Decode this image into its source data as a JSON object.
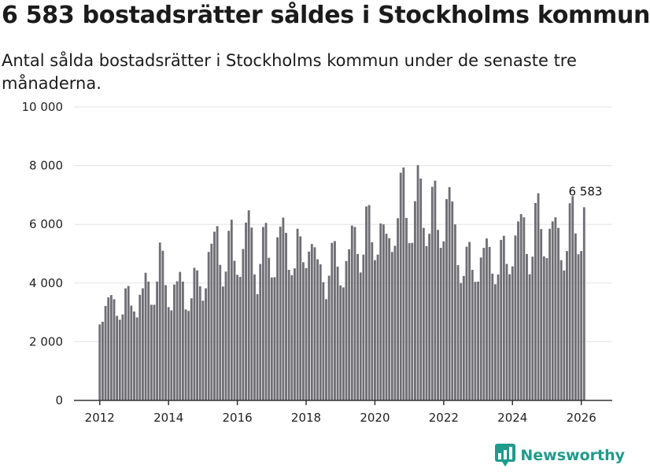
{
  "title": "6 583 bostadsrätter såldes i Stockholms kommun",
  "subtitle": "Antal sålda bostadsrätter i Stockholms kommun under de senaste tre månaderna.",
  "brand": {
    "name": "Newsworthy",
    "icon": "newsworthy-logo-icon",
    "color": "#1e9b8c"
  },
  "colors": {
    "bar": "#6e6e74",
    "highlight": "#12948a",
    "grid": "#e3e3e3",
    "axis": "#333333"
  },
  "chart_data": {
    "type": "bar",
    "title": "6 583 bostadsrätter såldes i Stockholms kommun",
    "xlabel": "",
    "ylabel": "",
    "ylim": [
      0,
      10000
    ],
    "y_ticks": [
      0,
      2000,
      4000,
      6000,
      8000,
      10000
    ],
    "y_tick_labels": [
      "0",
      "2 000",
      "4 000",
      "6 000",
      "8 000",
      "10 000"
    ],
    "x_ticks": [
      "2012",
      "2014",
      "2016",
      "2018",
      "2020",
      "2022",
      "2024",
      "2026"
    ],
    "x_range": [
      2011.25,
      2026.9
    ],
    "start": "2012-01",
    "period": "rolling 3 months, monthly",
    "values": [
      2590,
      2680,
      3220,
      3510,
      3590,
      3450,
      2880,
      2750,
      2930,
      3820,
      3900,
      3230,
      3030,
      2830,
      3600,
      3820,
      4350,
      4050,
      3260,
      3260,
      4050,
      5380,
      5100,
      3930,
      3180,
      3070,
      3950,
      4060,
      4380,
      4050,
      3100,
      3050,
      3480,
      4520,
      4430,
      3890,
      3400,
      3820,
      5060,
      5340,
      5750,
      5940,
      4620,
      3880,
      4390,
      5780,
      6160,
      4760,
      4280,
      4210,
      5160,
      6060,
      6480,
      5890,
      4290,
      3620,
      4650,
      5910,
      6050,
      4860,
      4190,
      4200,
      5560,
      5920,
      6230,
      5710,
      4450,
      4270,
      4500,
      5850,
      5590,
      4710,
      4510,
      5070,
      5330,
      5220,
      4810,
      4640,
      4030,
      3450,
      4250,
      5370,
      5430,
      4560,
      3920,
      3850,
      4750,
      5150,
      5960,
      5910,
      4990,
      4360,
      4970,
      6610,
      6660,
      5390,
      4780,
      4970,
      6030,
      6000,
      5680,
      5530,
      5060,
      5270,
      6210,
      7760,
      7940,
      6220,
      5360,
      5370,
      6790,
      8020,
      7560,
      5880,
      5260,
      5680,
      7280,
      7490,
      5810,
      5200,
      5420,
      6860,
      7270,
      6780,
      6000,
      4610,
      4000,
      4240,
      5240,
      5400,
      4450,
      4040,
      4050,
      4870,
      5200,
      5520,
      5230,
      4320,
      3960,
      4290,
      5470,
      5610,
      4650,
      4300,
      4570,
      5620,
      6100,
      6350,
      6240,
      4990,
      4300,
      4900,
      6730,
      7060,
      5840,
      4910,
      4850,
      5850,
      6100,
      6240,
      5880,
      4780,
      4430,
      5090,
      6720,
      6960,
      5690,
      4980,
      5090,
      6583
    ],
    "highlight": {
      "index": 170,
      "value": 6583,
      "label": "6 583"
    }
  }
}
